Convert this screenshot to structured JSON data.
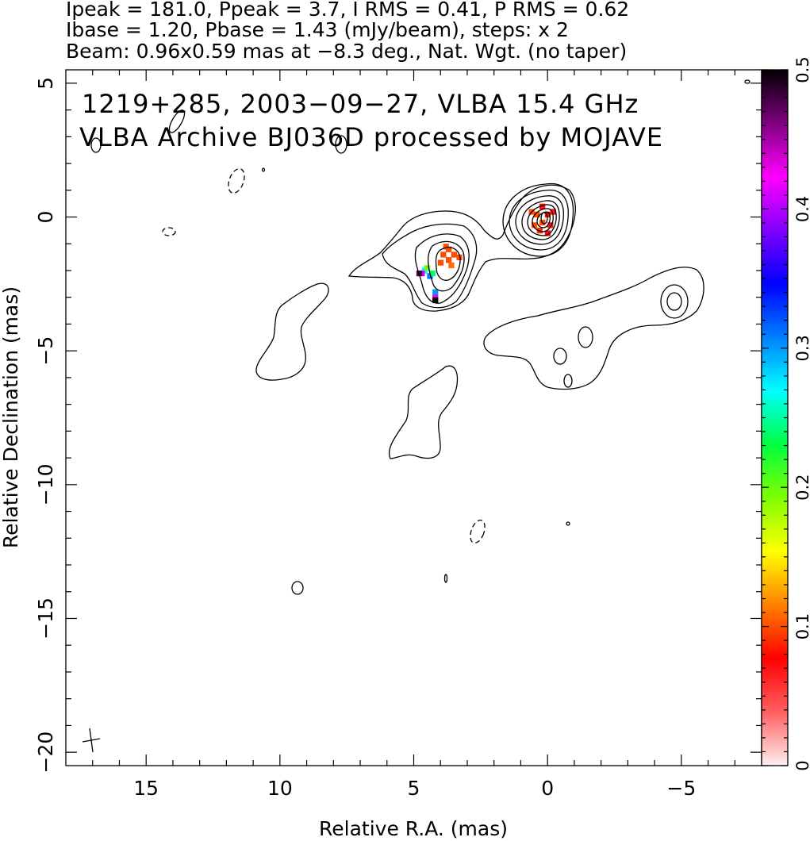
{
  "header": {
    "line1": "Ipeak = 181.0, Ppeak = 3.7, I RMS = 0.41, P RMS = 0.62",
    "line2": "Ibase = 1.20, Pbase = 1.43 (mJy/beam), steps: x 2",
    "line3": "Beam: 0.96x0.59 mas at −8.3 deg., Nat. Wgt. (no taper)"
  },
  "plot_text": {
    "title1": "1219+285, 2003−09−27, VLBA 15.4 GHz",
    "title2": "VLBA Archive BJ036D processed by MOJAVE"
  },
  "chart_data": {
    "type": "heatmap",
    "xlabel": "Relative R.A. (mas)",
    "ylabel": "Relative Declination (mas)",
    "xlim": [
      18,
      -8
    ],
    "ylim": [
      -20.5,
      5.5
    ],
    "xticks": [
      15,
      10,
      5,
      0,
      -5
    ],
    "xtick_labels": [
      "15",
      "10",
      "5",
      "0",
      "−5"
    ],
    "yticks": [
      5,
      0,
      -5,
      -10,
      -15,
      -20
    ],
    "ytick_labels": [
      "5",
      "0",
      "−5",
      "−10",
      "−15",
      "−20"
    ],
    "colorbar": {
      "range": [
        0,
        0.5
      ],
      "ticks": [
        0,
        0.1,
        0.2,
        0.3,
        0.4,
        0.5
      ],
      "tick_labels": [
        "0",
        "0.1",
        "0.2",
        "0.3",
        "0.4",
        "0.5"
      ],
      "colors": [
        "#fff0f0",
        "#ff6060",
        "#ff0000",
        "#ff8000",
        "#ffff00",
        "#80ff00",
        "#00ff40",
        "#00ffff",
        "#0080ff",
        "#0000ff",
        "#8000ff",
        "#ff00ff",
        "#800080",
        "#000000"
      ]
    },
    "ipeak": 181.0,
    "ppeak": 3.7,
    "i_rms": 0.41,
    "p_rms": 0.62,
    "ibase": 1.2,
    "pbase": 1.43,
    "beam": {
      "major_mas": 0.96,
      "minor_mas": 0.59,
      "pa_deg": -8.3
    },
    "pixels": [
      {
        "x": 0.2,
        "y": 0.4,
        "v": 0.08
      },
      {
        "x": 0.0,
        "y": 0.1,
        "v": 0.08
      },
      {
        "x": 0.4,
        "y": 0.1,
        "v": 0.1
      },
      {
        "x": 0.2,
        "y": -0.2,
        "v": 0.1
      },
      {
        "x": -0.1,
        "y": -0.3,
        "v": 0.07
      },
      {
        "x": 0.5,
        "y": -0.3,
        "v": 0.1
      },
      {
        "x": 0.3,
        "y": -0.5,
        "v": 0.09
      },
      {
        "x": 0.0,
        "y": -0.6,
        "v": 0.08
      },
      {
        "x": 0.6,
        "y": 0.2,
        "v": 0.1
      },
      {
        "x": -0.2,
        "y": 0.2,
        "v": 0.07
      },
      {
        "x": 3.7,
        "y": -1.2,
        "v": 0.1
      },
      {
        "x": 3.5,
        "y": -1.4,
        "v": 0.1
      },
      {
        "x": 3.9,
        "y": -1.4,
        "v": 0.1
      },
      {
        "x": 3.7,
        "y": -1.6,
        "v": 0.1
      },
      {
        "x": 3.3,
        "y": -1.5,
        "v": 0.1
      },
      {
        "x": 4.0,
        "y": -1.7,
        "v": 0.1
      },
      {
        "x": 3.6,
        "y": -1.8,
        "v": 0.11
      },
      {
        "x": 3.8,
        "y": -1.1,
        "v": 0.1
      },
      {
        "x": 4.6,
        "y": -2.0,
        "v": 0.27
      },
      {
        "x": 4.5,
        "y": -1.9,
        "v": 0.2
      },
      {
        "x": 4.4,
        "y": -2.2,
        "v": 0.31
      },
      {
        "x": 4.7,
        "y": -2.1,
        "v": 0.41
      },
      {
        "x": 4.8,
        "y": -2.1,
        "v": 0.48
      },
      {
        "x": 4.3,
        "y": -2.1,
        "v": 0.24
      },
      {
        "x": 4.2,
        "y": -2.8,
        "v": 0.3
      },
      {
        "x": 4.2,
        "y": -3.0,
        "v": 0.42
      },
      {
        "x": 4.2,
        "y": -3.1,
        "v": 0.5
      }
    ]
  }
}
